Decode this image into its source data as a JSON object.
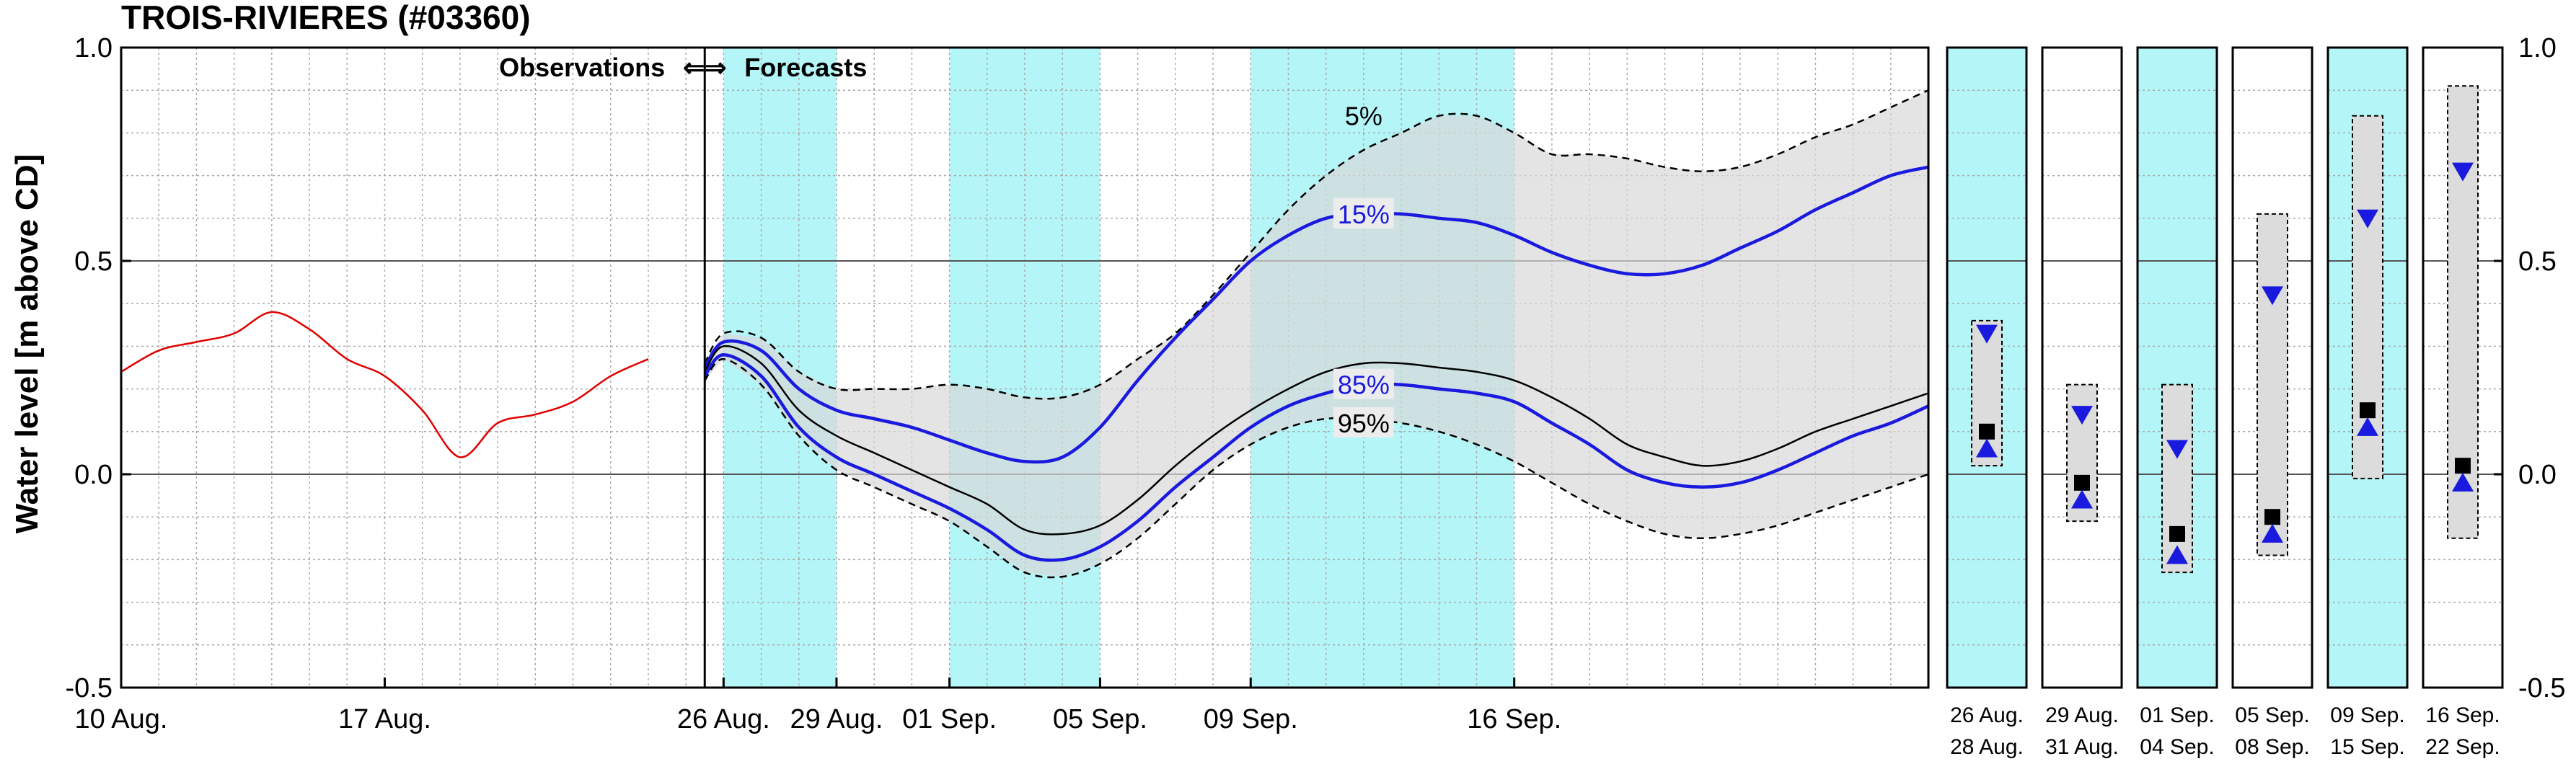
{
  "chart_data": {
    "type": "line",
    "title": "TROIS-RIVIERES (#03360)",
    "ylabel": "Water level [m above CD]",
    "ylim": [
      -0.5,
      1.0
    ],
    "yticks": [
      1.0,
      0.5,
      0.0,
      -0.5
    ],
    "ytick_labels": [
      "1.0",
      "0.5",
      "0.0",
      "-0.5"
    ],
    "xlim_days": [
      0,
      48
    ],
    "x_unit": "days after 10 Aug.",
    "xtick_days": [
      0,
      7,
      16,
      19,
      22,
      26,
      30,
      37
    ],
    "xtick_labels": [
      "10 Aug.",
      "17 Aug.",
      "26 Aug.",
      "29 Aug.",
      "01 Sep.",
      "05 Sep.",
      "09 Sep.",
      "16 Sep."
    ],
    "observation_forecast_split_day": 15.5,
    "obs_label": "Observations",
    "arrow_symbol": "⇐⇒",
    "fc_label": "Forecasts",
    "shaded_periods_days": [
      [
        16,
        19
      ],
      [
        22,
        26
      ],
      [
        30,
        37
      ]
    ],
    "band_label_5": "5%",
    "band_label_15": "15%",
    "band_label_85": "85%",
    "band_label_95": "95%",
    "series": [
      {
        "name": "Observations",
        "color": "#e00000",
        "x": [
          0,
          1,
          2,
          3,
          4,
          5,
          6,
          7,
          8,
          9,
          10,
          11,
          12,
          13,
          14
        ],
        "values": [
          0.24,
          0.29,
          0.31,
          0.33,
          0.38,
          0.34,
          0.27,
          0.23,
          0.15,
          0.04,
          0.12,
          0.14,
          0.17,
          0.23,
          0.27
        ]
      },
      {
        "name": "5%",
        "color": "#000000",
        "dash": true,
        "x": [
          15.5,
          16,
          17,
          18,
          19,
          20,
          21,
          22,
          23,
          24,
          25,
          26,
          27,
          28,
          29,
          30,
          31,
          32,
          33,
          34,
          35,
          36,
          37,
          38,
          39,
          40,
          41,
          42,
          43,
          44,
          45,
          46,
          47,
          48
        ],
        "values": [
          0.26,
          0.33,
          0.32,
          0.24,
          0.2,
          0.2,
          0.2,
          0.21,
          0.2,
          0.18,
          0.18,
          0.21,
          0.27,
          0.33,
          0.42,
          0.52,
          0.62,
          0.7,
          0.76,
          0.8,
          0.84,
          0.84,
          0.8,
          0.75,
          0.75,
          0.74,
          0.72,
          0.71,
          0.72,
          0.75,
          0.79,
          0.82,
          0.86,
          0.9
        ]
      },
      {
        "name": "15%",
        "color": "#1a1adf",
        "x": [
          15.5,
          16,
          17,
          18,
          19,
          20,
          21,
          22,
          23,
          24,
          25,
          26,
          27,
          28,
          29,
          30,
          31,
          32,
          33,
          34,
          35,
          36,
          37,
          38,
          39,
          40,
          41,
          42,
          43,
          44,
          45,
          46,
          47,
          48
        ],
        "values": [
          0.25,
          0.31,
          0.29,
          0.2,
          0.15,
          0.13,
          0.11,
          0.08,
          0.05,
          0.03,
          0.04,
          0.11,
          0.22,
          0.32,
          0.41,
          0.5,
          0.56,
          0.6,
          0.61,
          0.61,
          0.6,
          0.59,
          0.56,
          0.52,
          0.49,
          0.47,
          0.47,
          0.49,
          0.53,
          0.57,
          0.62,
          0.66,
          0.7,
          0.72
        ]
      },
      {
        "name": "Median",
        "color": "#000000",
        "x": [
          15.5,
          16,
          17,
          18,
          19,
          20,
          21,
          22,
          23,
          24,
          25,
          26,
          27,
          28,
          29,
          30,
          31,
          32,
          33,
          34,
          35,
          36,
          37,
          38,
          39,
          40,
          41,
          42,
          43,
          44,
          45,
          46,
          47,
          48
        ],
        "values": [
          0.24,
          0.3,
          0.26,
          0.15,
          0.09,
          0.05,
          0.01,
          -0.03,
          -0.07,
          -0.13,
          -0.14,
          -0.12,
          -0.06,
          0.02,
          0.09,
          0.15,
          0.2,
          0.24,
          0.26,
          0.26,
          0.25,
          0.24,
          0.22,
          0.18,
          0.13,
          0.07,
          0.04,
          0.02,
          0.03,
          0.06,
          0.1,
          0.13,
          0.16,
          0.19
        ]
      },
      {
        "name": "85%",
        "color": "#1a1adf",
        "x": [
          15.5,
          16,
          17,
          18,
          19,
          20,
          21,
          22,
          23,
          24,
          25,
          26,
          27,
          28,
          29,
          30,
          31,
          32,
          33,
          34,
          35,
          36,
          37,
          38,
          39,
          40,
          41,
          42,
          43,
          44,
          45,
          46,
          47,
          48
        ],
        "values": [
          0.23,
          0.28,
          0.23,
          0.11,
          0.04,
          0.0,
          -0.04,
          -0.08,
          -0.13,
          -0.19,
          -0.2,
          -0.17,
          -0.11,
          -0.03,
          0.04,
          0.11,
          0.16,
          0.19,
          0.21,
          0.21,
          0.2,
          0.19,
          0.17,
          0.12,
          0.07,
          0.01,
          -0.02,
          -0.03,
          -0.02,
          0.01,
          0.05,
          0.09,
          0.12,
          0.16
        ]
      },
      {
        "name": "95%",
        "color": "#000000",
        "dash": true,
        "x": [
          15.5,
          16,
          17,
          18,
          19,
          20,
          21,
          22,
          23,
          24,
          25,
          26,
          27,
          28,
          29,
          30,
          31,
          32,
          33,
          34,
          35,
          36,
          37,
          38,
          39,
          40,
          41,
          42,
          43,
          44,
          45,
          46,
          47,
          48
        ],
        "values": [
          0.22,
          0.27,
          0.21,
          0.09,
          0.01,
          -0.03,
          -0.07,
          -0.11,
          -0.17,
          -0.23,
          -0.24,
          -0.21,
          -0.15,
          -0.07,
          0.01,
          0.07,
          0.11,
          0.13,
          0.13,
          0.12,
          0.1,
          0.07,
          0.03,
          -0.02,
          -0.07,
          -0.11,
          -0.14,
          -0.15,
          -0.14,
          -0.12,
          -0.09,
          -0.06,
          -0.03,
          0.0
        ]
      }
    ],
    "weekly_panels": [
      {
        "label_top": "26 Aug.",
        "label_bottom": "28 Aug.",
        "shaded": true,
        "box": [
          0.02,
          0.36
        ],
        "median": 0.1,
        "high": 0.33,
        "low": 0.06
      },
      {
        "label_top": "29 Aug.",
        "label_bottom": "31 Aug.",
        "shaded": false,
        "box": [
          -0.11,
          0.21
        ],
        "median": -0.02,
        "high": 0.14,
        "low": -0.06
      },
      {
        "label_top": "01 Sep.",
        "label_bottom": "04 Sep.",
        "shaded": true,
        "box": [
          -0.23,
          0.21
        ],
        "median": -0.14,
        "high": 0.06,
        "low": -0.19
      },
      {
        "label_top": "05 Sep.",
        "label_bottom": "08 Sep.",
        "shaded": false,
        "box": [
          -0.19,
          0.61
        ],
        "median": -0.1,
        "high": 0.42,
        "low": -0.14
      },
      {
        "label_top": "09 Sep.",
        "label_bottom": "15 Sep.",
        "shaded": true,
        "box": [
          -0.01,
          0.84
        ],
        "median": 0.15,
        "high": 0.6,
        "low": 0.11
      },
      {
        "label_top": "16 Sep.",
        "label_bottom": "22 Sep.",
        "shaded": false,
        "box": [
          -0.15,
          0.91
        ],
        "median": 0.02,
        "high": 0.71,
        "low": -0.02
      }
    ]
  }
}
